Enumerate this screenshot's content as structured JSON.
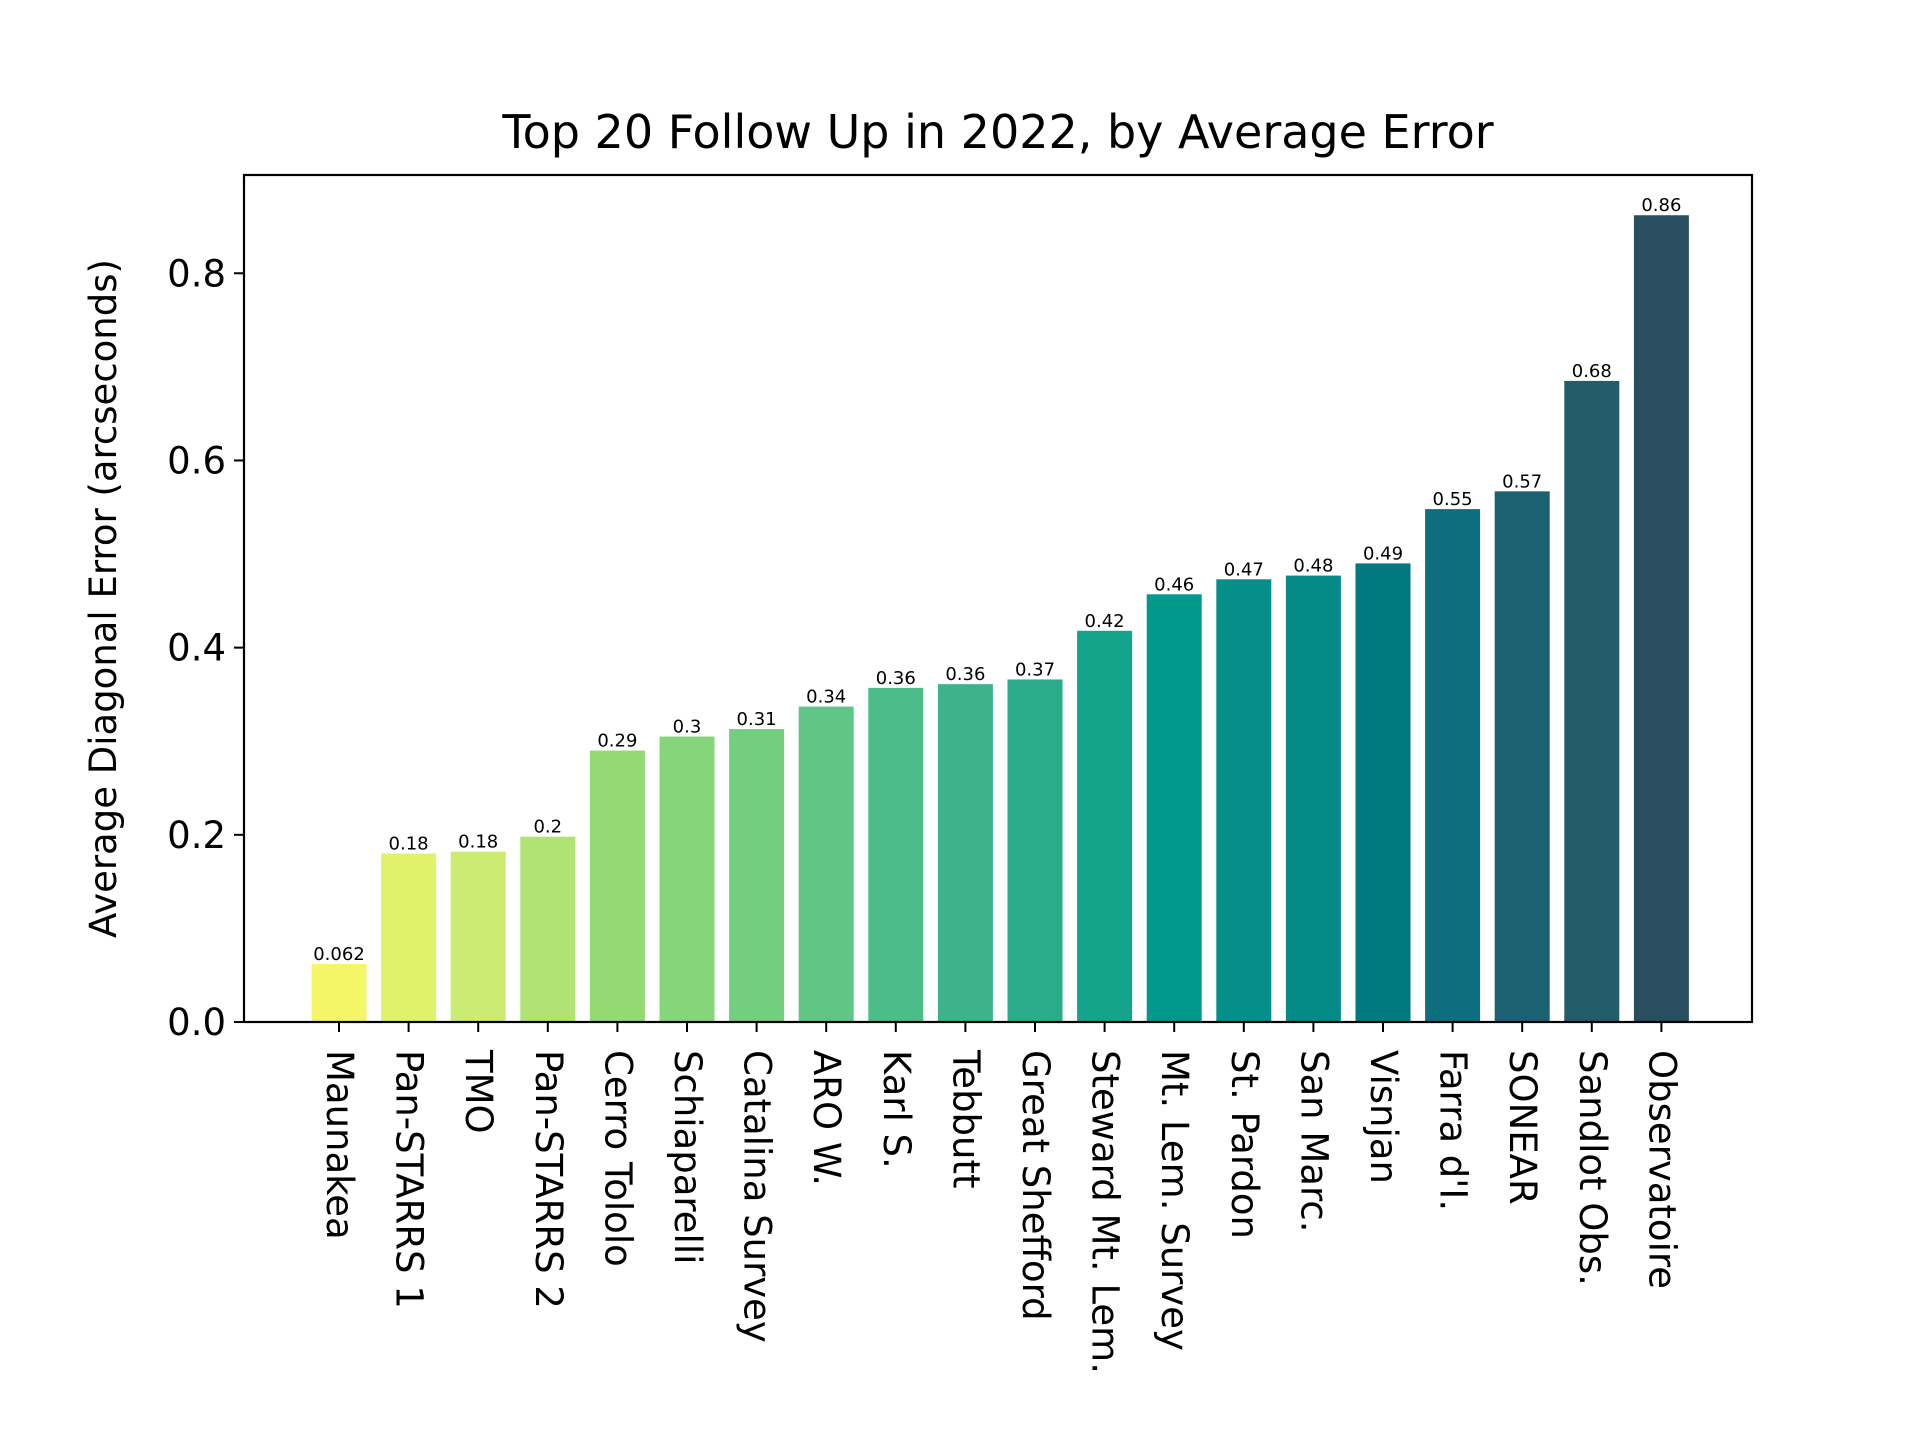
{
  "chart_data": {
    "type": "bar",
    "title": "Top 20 Follow Up in 2022, by Average Error",
    "xlabel": "",
    "ylabel": "Average Diagonal Error (arcseconds)",
    "ylim": [
      0,
      0.905
    ],
    "yticks": [
      "0.0",
      "0.2",
      "0.4",
      "0.6",
      "0.8"
    ],
    "ytick_values": [
      0,
      0.2,
      0.4,
      0.6,
      0.8
    ],
    "grid": false,
    "legend": "none",
    "categories": [
      "Maunakea",
      "Pan-STARRS 1",
      "TMO",
      "Pan-STARRS 2",
      "Cerro Tololo",
      "Schiaparelli",
      "Catalina Survey",
      "ARO W.",
      "Karl S.",
      "Tebbutt",
      "Great Shefford",
      "Steward Mt. Lem.",
      "Mt. Lem. Survey",
      "St. Pardon",
      "San Marc.",
      "Visnjan",
      "Farra d'I.",
      "SONEAR",
      "Sandlot Obs.",
      "Observatoire"
    ],
    "values": [
      0.062,
      0.18,
      0.182,
      0.198,
      0.29,
      0.305,
      0.313,
      0.337,
      0.357,
      0.361,
      0.366,
      0.418,
      0.457,
      0.473,
      0.477,
      0.49,
      0.548,
      0.567,
      0.685,
      0.862
    ],
    "value_labels": [
      "0.062",
      "0.18",
      "0.18",
      "0.2",
      "0.29",
      "0.3",
      "0.31",
      "0.34",
      "0.36",
      "0.36",
      "0.37",
      "0.42",
      "0.46",
      "0.47",
      "0.48",
      "0.49",
      "0.55",
      "0.57",
      "0.68",
      "0.86"
    ],
    "colors": [
      "#f4f567",
      "#e0f26a",
      "#cbeb72",
      "#b1e274",
      "#94d973",
      "#85d67a",
      "#74ce80",
      "#60c686",
      "#4cbd88",
      "#3cb38b",
      "#2aac8a",
      "#13a48b",
      "#02998c",
      "#048f8a",
      "#058a88",
      "#00797f",
      "#0e6e7e",
      "#1c6172",
      "#235c6b",
      "#294e5f"
    ]
  }
}
